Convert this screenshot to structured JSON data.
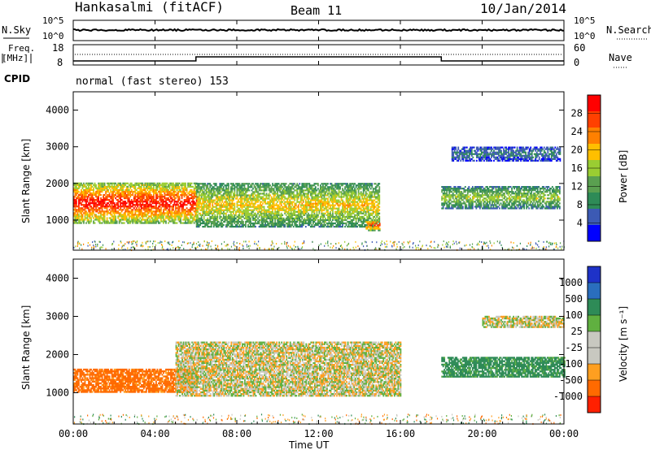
{
  "header": {
    "station": "Hankasalmi (fitACF)",
    "beam": "Beam 11",
    "date": "10/Jan/2014"
  },
  "noise_panel": {
    "left_label": "N.Sky",
    "right_label": "N.Search",
    "y_ticks": [
      "10^5",
      "10^0"
    ]
  },
  "freq_panel": {
    "left_label_line1": "Freq.",
    "left_label_line2": "[MHz]",
    "right_label": "Nave",
    "left_ticks": [
      "18",
      "8"
    ],
    "right_ticks": [
      "60",
      "0"
    ]
  },
  "cpid": {
    "label": "CPID",
    "text": "normal (fast stereo) 153"
  },
  "power_panel": {
    "ylabel": "Slant Range [km]",
    "y_ticks": [
      "4000",
      "3000",
      "2000",
      "1000"
    ],
    "colorbar_label": "Power [dB]",
    "colorbar_ticks": [
      "28",
      "24",
      "20",
      "16",
      "12",
      "8",
      "4"
    ],
    "colorbar_colors": [
      "#ff0000",
      "#ff4000",
      "#ff8000",
      "#ffbf00",
      "#9acd32",
      "#5aa050",
      "#2e8b57",
      "#3c5ab4",
      "#0000ff"
    ]
  },
  "velocity_panel": {
    "ylabel": "Slant Range [km]",
    "y_ticks": [
      "4000",
      "3000",
      "2000",
      "1000"
    ],
    "colorbar_label": "Velocity [m s⁻¹]",
    "colorbar_ticks": [
      "1000",
      "500",
      "100",
      "25",
      "-25",
      "-100",
      "-500",
      "-1000"
    ],
    "colorbar_colors": [
      "#1e32c8",
      "#2a6ebe",
      "#2e8b57",
      "#60b040",
      "#c8c8c0",
      "#c8c8c0",
      "#ff9f20",
      "#ff6a00",
      "#ff2000"
    ]
  },
  "x_axis": {
    "label": "Time UT",
    "ticks": [
      "00:00",
      "04:00",
      "08:00",
      "12:00",
      "16:00",
      "20:00",
      "00:00"
    ]
  },
  "chart_data": {
    "type": "heatmap",
    "x_range_hours": [
      0,
      24
    ],
    "y_range_km": [
      180,
      4500
    ],
    "power_regions": [
      {
        "t": [
          0.0,
          6.0
        ],
        "r": [
          900,
          2000
        ],
        "power_db": 30
      },
      {
        "t": [
          6.0,
          15.0
        ],
        "r": [
          800,
          2000
        ],
        "power_db": 20
      },
      {
        "t": [
          14.3,
          15.0
        ],
        "r": [
          700,
          1000
        ],
        "power_db": 28
      },
      {
        "t": [
          18.0,
          23.8
        ],
        "r": [
          1300,
          1900
        ],
        "power_db": 16
      },
      {
        "t": [
          18.5,
          23.8
        ],
        "r": [
          2600,
          3000
        ],
        "power_db": 8
      }
    ],
    "velocity_regions": [
      {
        "t": [
          0.0,
          6.0
        ],
        "r": [
          1000,
          1600
        ],
        "velocity": -100
      },
      {
        "t": [
          5.0,
          16.0
        ],
        "r": [
          900,
          2300
        ],
        "velocity": 0
      },
      {
        "t": [
          18.0,
          24.0
        ],
        "r": [
          1400,
          1900
        ],
        "velocity": 100
      },
      {
        "t": [
          20.0,
          24.0
        ],
        "r": [
          2700,
          3000
        ],
        "velocity": 0
      }
    ],
    "frequency_mhz": [
      {
        "t": [
          0.0,
          6.0
        ],
        "value": 10
      },
      {
        "t": [
          6.0,
          18.0
        ],
        "value": 12
      },
      {
        "t": [
          18.0,
          24.0
        ],
        "value": 10
      }
    ]
  }
}
